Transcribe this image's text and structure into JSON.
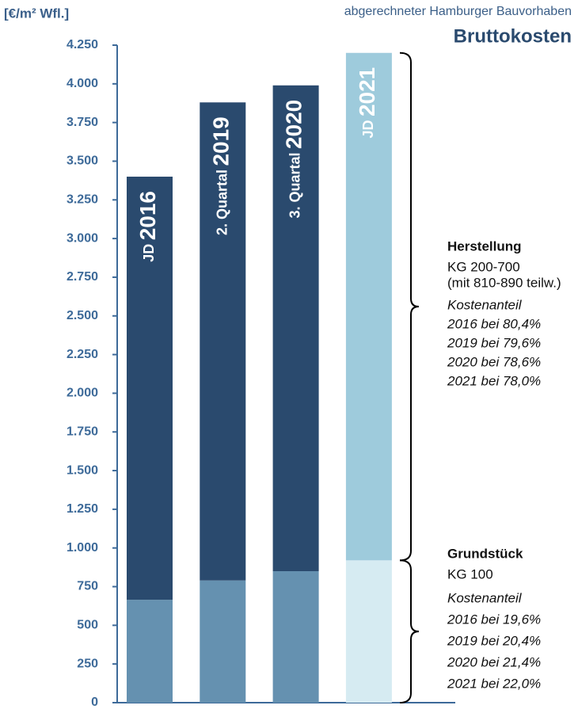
{
  "chart_data": {
    "type": "stacked-bar",
    "title": "Bruttokosten",
    "subtitle": "abgerechneter Hamburger Bauvorhaben",
    "y_label": "[€/m² Wfl.]",
    "categories": [
      {
        "prefix": "JD",
        "year": "2016"
      },
      {
        "prefix": "2. Quartal",
        "year": "2019"
      },
      {
        "prefix": "3. Quartal",
        "year": "2020"
      },
      {
        "prefix": "JD",
        "year": "2021"
      }
    ],
    "series": [
      {
        "name": "Grundstück",
        "colors": [
          "#6591b0",
          "#6591b0",
          "#6591b0",
          "#d6ebf2"
        ],
        "values": [
          665,
          790,
          850,
          920
        ],
        "details": [
          "KG 100"
        ],
        "share_title": "Kostenanteil",
        "shares": [
          "2016 bei 19,6%",
          "2019 bei 20,4%",
          "2020 bei 21,4%",
          "2021 bei 22,0%"
        ]
      },
      {
        "name": "Herstellung",
        "colors": [
          "#2a4a6e",
          "#2a4a6e",
          "#2a4a6e",
          "#9ecbdc"
        ],
        "values": [
          2735,
          3090,
          3140,
          3280
        ],
        "details": [
          "KG 200-700",
          "(mit 810-890 teilw.)"
        ],
        "share_title": "Kostenanteil",
        "shares": [
          "2016 bei 80,4%",
          "2019 bei 79,6%",
          "2020 bei 78,6%",
          "2021 bei 78,0%"
        ]
      }
    ],
    "ylim": [
      0,
      4250
    ],
    "yticks": [
      0,
      250,
      500,
      750,
      {
        "value": 1000,
        "label": "1.000"
      },
      {
        "value": 1250,
        "label": "1.250"
      },
      {
        "value": 1500,
        "label": "1.500"
      },
      {
        "value": 1750,
        "label": "1.750"
      },
      {
        "value": 2000,
        "label": "2.000"
      },
      {
        "value": 2250,
        "label": "2.250"
      },
      {
        "value": 2500,
        "label": "2.500"
      },
      {
        "value": 2750,
        "label": "2.750"
      },
      {
        "value": 3000,
        "label": "3.000"
      },
      {
        "value": 3250,
        "label": "3.250"
      },
      {
        "value": 3500,
        "label": "3.500"
      },
      {
        "value": 3750,
        "label": "3.750"
      },
      {
        "value": 4000,
        "label": "4.000"
      },
      {
        "value": 4250,
        "label": "4.250"
      }
    ]
  }
}
